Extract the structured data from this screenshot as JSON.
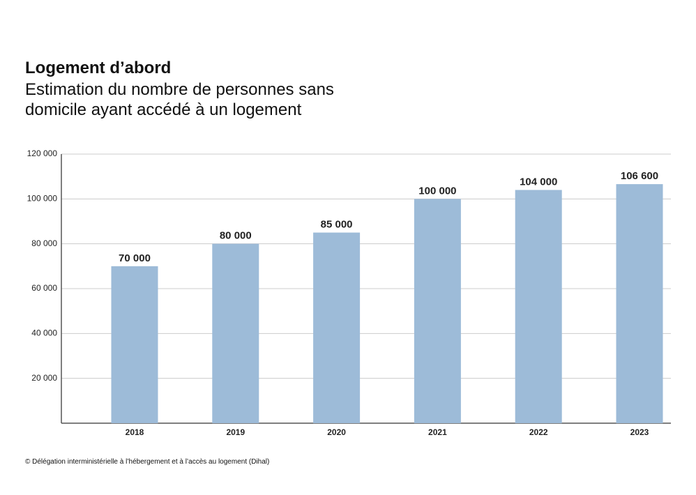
{
  "chart_data": {
    "type": "bar",
    "title": "Logement d’abord",
    "subtitle": "Estimation du nombre de personnes sans domicile ayant accédé à un logement",
    "categories": [
      "2018",
      "2019",
      "2020",
      "2021",
      "2022",
      "2023"
    ],
    "values": [
      70000,
      80000,
      85000,
      100000,
      104000,
      106600
    ],
    "value_labels": [
      "70 000",
      "80 000",
      "85 000",
      "100 000",
      "104 000",
      "106 600"
    ],
    "color": "#9dbbd8",
    "ylim": [
      0,
      120000
    ],
    "yticks": [
      {
        "value": 20000,
        "label": "20 000"
      },
      {
        "value": 40000,
        "label": "40 000"
      },
      {
        "value": 60000,
        "label": "60 000"
      },
      {
        "value": 80000,
        "label": "80 000"
      },
      {
        "value": 100000,
        "label": "100 000"
      },
      {
        "value": 120000,
        "label": "120 000"
      }
    ],
    "grid": true,
    "source": "© Délégation interministérielle à l’hébergement et à l’accès au logement (Dihal)"
  }
}
